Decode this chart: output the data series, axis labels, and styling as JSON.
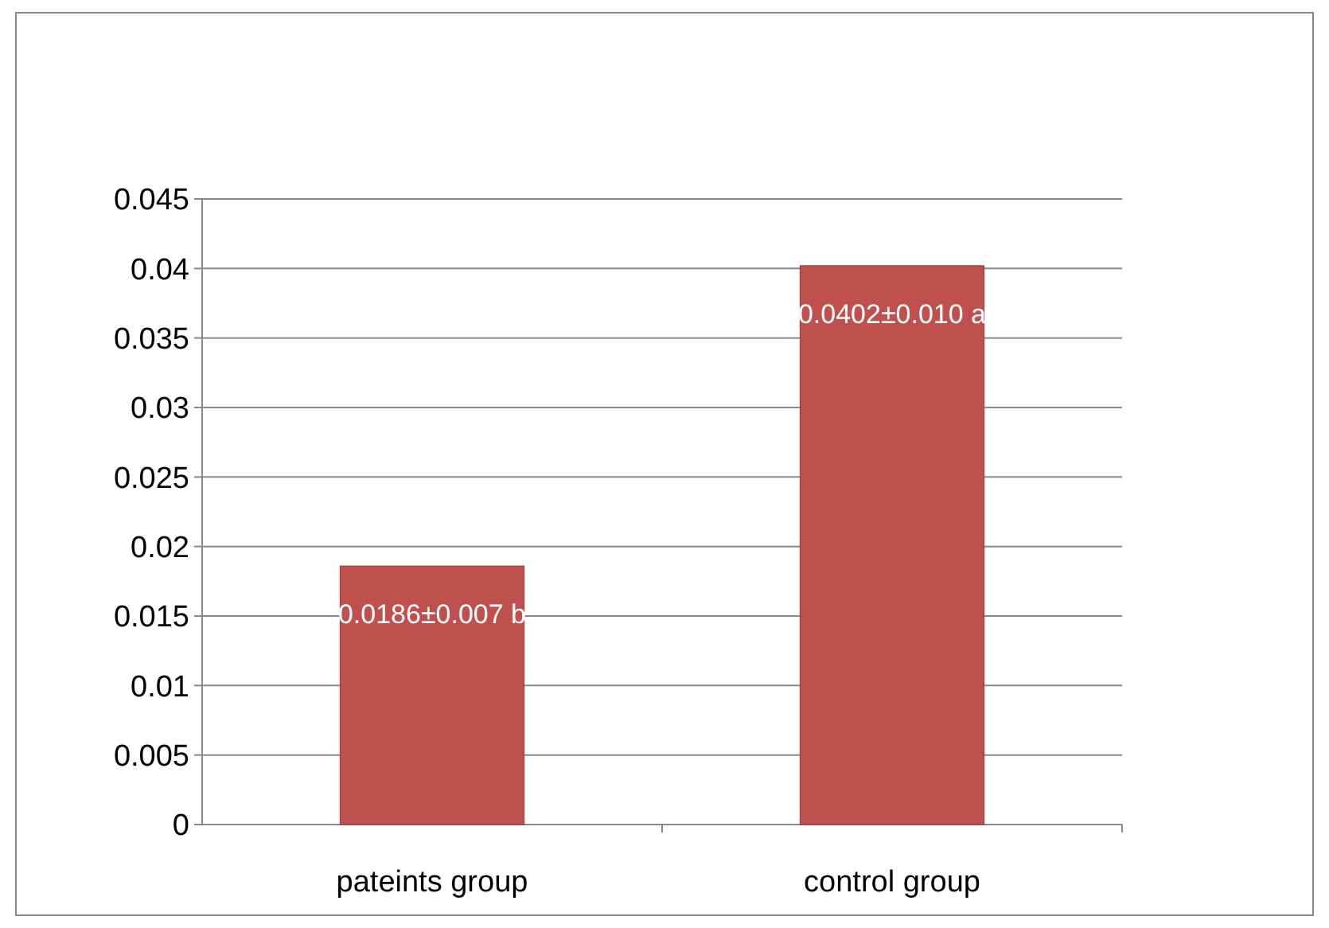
{
  "chart_data": {
    "type": "bar",
    "categories": [
      "pateints group",
      "control group"
    ],
    "values": [
      0.0186,
      0.0402
    ],
    "color": "#c0504d",
    "value_labels": [
      "0.0186±0.007 b",
      "0.0402±0.010 a"
    ],
    "ylim": [
      0,
      0.045
    ],
    "yticks": [
      0,
      0.005,
      0.01,
      0.015,
      0.02,
      0.025,
      0.03,
      0.035,
      0.04,
      0.045
    ],
    "grid": "y"
  }
}
